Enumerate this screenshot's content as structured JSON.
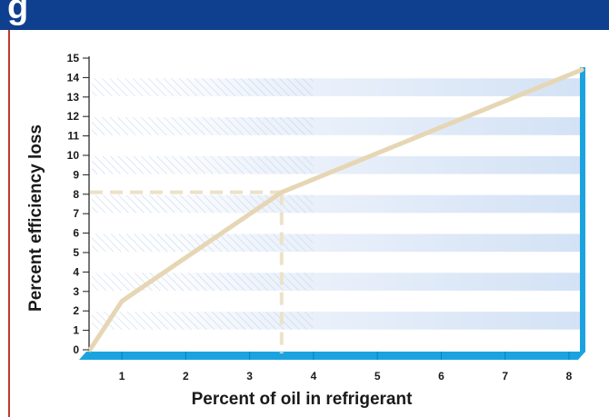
{
  "header": {
    "title": "g"
  },
  "colors": {
    "header": "#0f3f8f",
    "accent_rule": "#c0392b",
    "axis": "#1ba3e0",
    "band": "#d9e6f6",
    "line": "#e6d6b4",
    "guide": "#ece2c8"
  },
  "chart_data": {
    "type": "line",
    "title": "",
    "xlabel": "Percent of oil in refrigerant",
    "ylabel": "Percent efficiency loss",
    "xlim": [
      0.5,
      8.2
    ],
    "ylim": [
      0,
      15
    ],
    "x_ticks": [
      "1",
      "2",
      "3",
      "4",
      "5",
      "6",
      "7",
      "8"
    ],
    "y_ticks": [
      "0",
      "1",
      "2",
      "3",
      "4",
      "5",
      "6",
      "7",
      "8",
      "9",
      "10",
      "11",
      "12",
      "13",
      "14",
      "15"
    ],
    "series": [
      {
        "x": [
          0.5,
          1,
          3.5,
          8.2
        ],
        "y": [
          0,
          2.5,
          8.1,
          14.4
        ]
      }
    ],
    "annotation": {
      "x": 3.5,
      "y": 8.1,
      "style": "dashed guide lines to both axes"
    },
    "grid": "alternating horizontal bands"
  }
}
